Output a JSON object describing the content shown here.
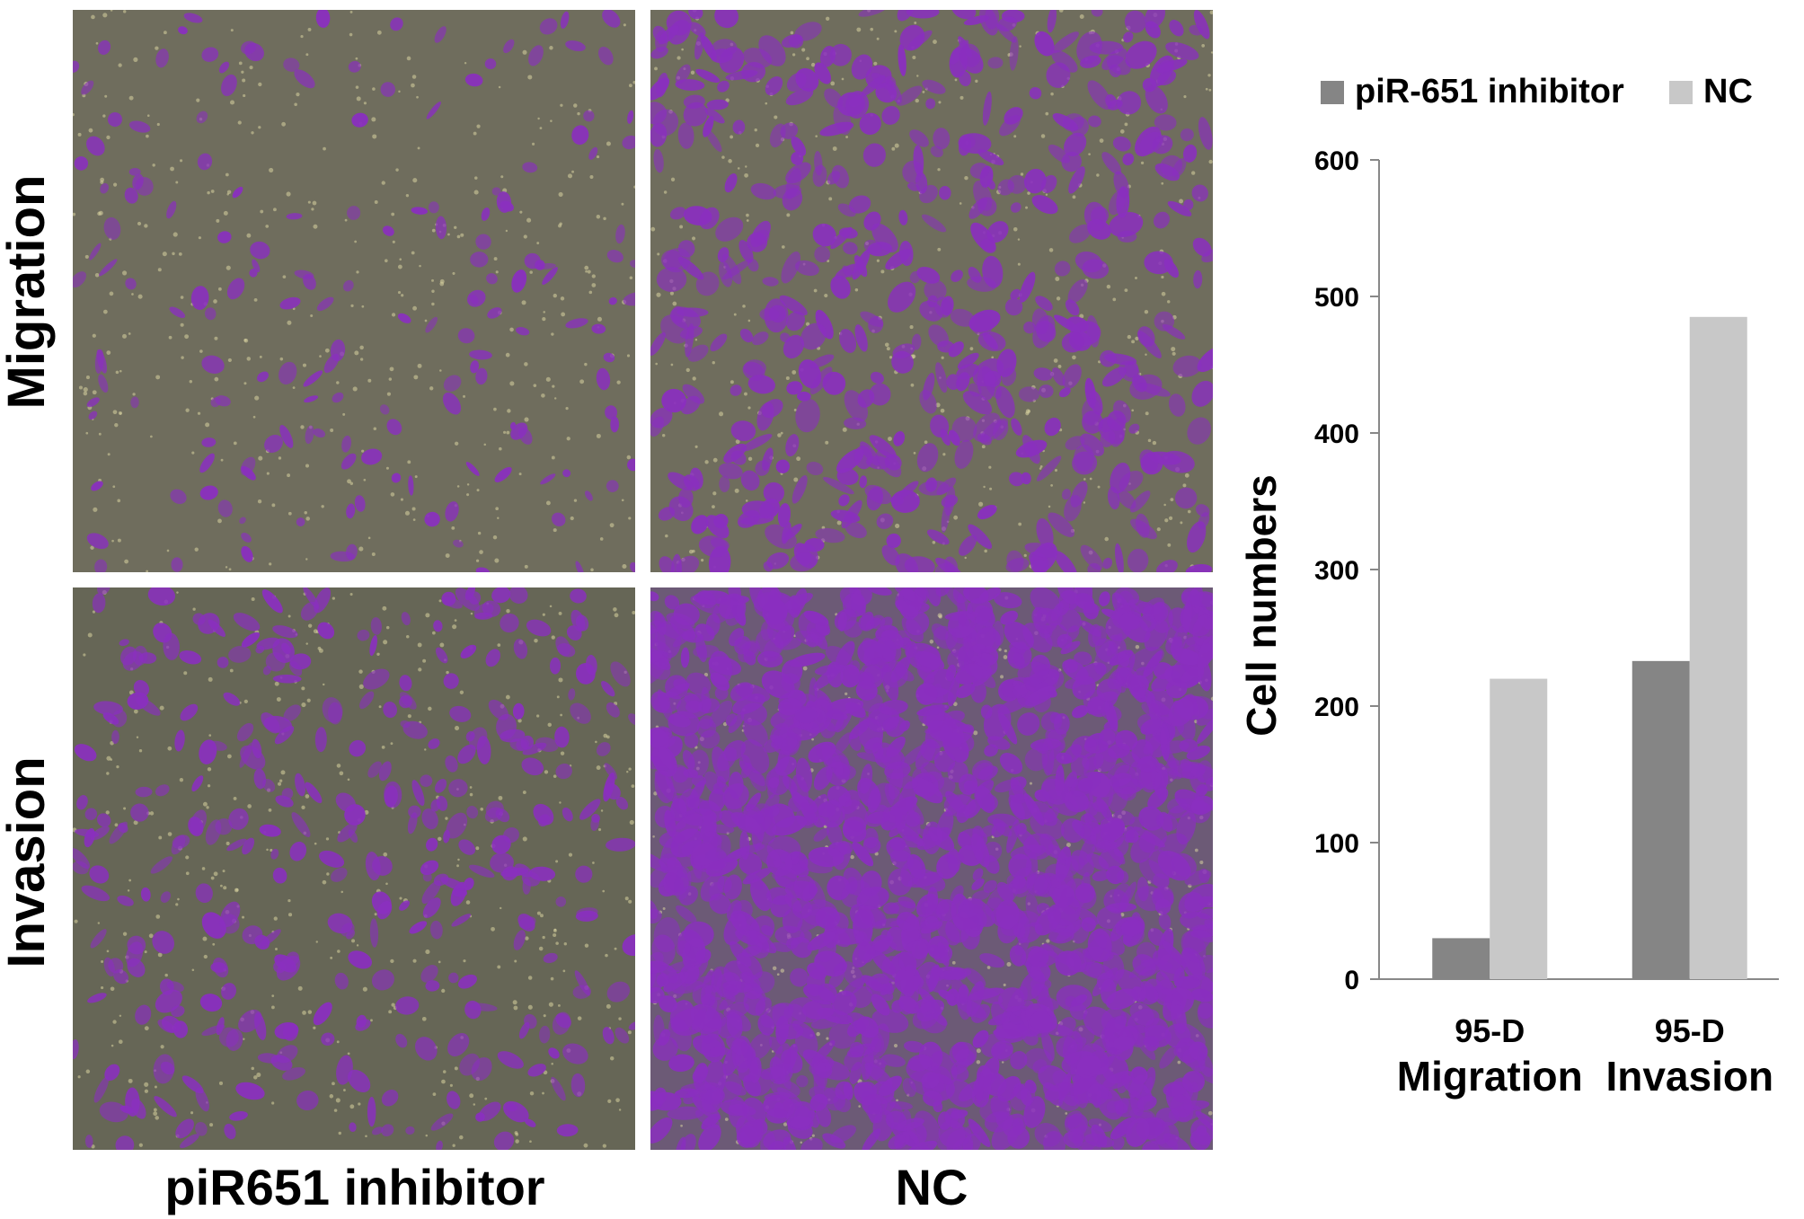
{
  "figure": {
    "row_labels": [
      "Migration",
      "Invasion"
    ],
    "column_labels": [
      "piR651 inhibitor",
      "NC"
    ]
  },
  "micrographs": {
    "top_left": {
      "row": "Migration",
      "column": "piR651 inhibitor"
    },
    "top_right": {
      "row": "Migration",
      "column": "NC"
    },
    "bottom_left": {
      "row": "Invasion",
      "column": "piR651 inhibitor"
    },
    "bottom_right": {
      "row": "Invasion",
      "column": "NC"
    }
  },
  "colors": {
    "background_membrane": "#6f6d5d",
    "stain": "#8a2fbf",
    "inhibitor_bar": "#858585",
    "nc_bar": "#c8c8c8"
  },
  "chart_data": {
    "type": "bar",
    "categories": [
      [
        "95-D",
        "Migration"
      ],
      [
        "95-D",
        "Invasion"
      ]
    ],
    "series": [
      {
        "name": "piR-651 inhibitor",
        "values": [
          30,
          233
        ],
        "color": "#858585"
      },
      {
        "name": "NC",
        "values": [
          220,
          485
        ],
        "color": "#c8c8c8"
      }
    ],
    "ylabel": "Cell numbers",
    "ylim": [
      0,
      600
    ],
    "yticks": [
      0,
      100,
      200,
      300,
      400,
      500,
      600
    ],
    "legend_position": "top",
    "grid": false
  }
}
